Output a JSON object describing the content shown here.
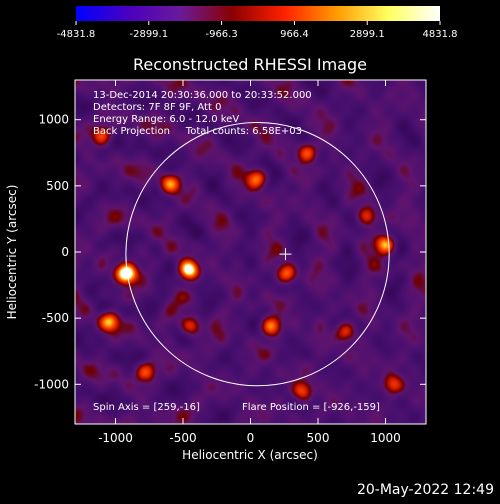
{
  "chart_data": {
    "type": "heatmap",
    "title": "Reconstructed RHESSI Image",
    "xlabel": "Heliocentric X (arcsec)",
    "ylabel": "Heliocentric Y (arcsec)",
    "xlim": [
      -1300,
      1300
    ],
    "ylim": [
      -1300,
      1300
    ],
    "x_ticks": [
      -1000,
      -500,
      0,
      500,
      1000
    ],
    "y_ticks": [
      -1000,
      -500,
      0,
      500,
      1000
    ],
    "colorbar": {
      "ticks": [
        "-4831.8",
        "-2899.1",
        "-966.3",
        "966.4",
        "2899.1",
        "4831.8"
      ],
      "min": -4831.8,
      "max": 4831.8,
      "colors": [
        "#0000ff",
        "#4a00c0",
        "#6a1a9a",
        "#8a0000",
        "#ff2000",
        "#ff9a00",
        "#ffff60",
        "#ffffff"
      ]
    },
    "info_lines": [
      "13-Dec-2014 20:30:36.000 to 20:33:52.000",
      "Detectors: 7F 8F 9F, Att 0",
      "Energy Range: 6.0 - 12.0 keV",
      "Back Projection     Total counts: 6.58E+03"
    ],
    "spin_axis_label": "Spin Axis = [259,-16]",
    "flare_position_label": "Flare Position = [-926,-159]",
    "spin_axis": [
      259,
      -16
    ],
    "solar_disk": {
      "center": [
        52,
        -16
      ],
      "radius": 975
    },
    "bright_sources": [
      {
        "x": -926,
        "y": -159,
        "strength": 1.0
      },
      {
        "x": -460,
        "y": -130,
        "strength": 0.85
      },
      {
        "x": 270,
        "y": -160,
        "strength": 0.6
      },
      {
        "x": 1000,
        "y": 60,
        "strength": 0.7
      },
      {
        "x": -600,
        "y": 520,
        "strength": 0.55
      },
      {
        "x": 50,
        "y": 560,
        "strength": 0.55
      },
      {
        "x": 420,
        "y": 760,
        "strength": 0.5
      },
      {
        "x": -1050,
        "y": -520,
        "strength": 0.6
      },
      {
        "x": -440,
        "y": -560,
        "strength": 0.55
      },
      {
        "x": 150,
        "y": -560,
        "strength": 0.6
      },
      {
        "x": 700,
        "y": -600,
        "strength": 0.5
      },
      {
        "x": -780,
        "y": -900,
        "strength": 0.45
      },
      {
        "x": 380,
        "y": -1050,
        "strength": 0.5
      },
      {
        "x": 1050,
        "y": -1000,
        "strength": 0.45
      },
      {
        "x": -1100,
        "y": 880,
        "strength": 0.45
      },
      {
        "x": 860,
        "y": 280,
        "strength": 0.45
      }
    ],
    "grid": false
  },
  "timestamp": "20-May-2022 12:49"
}
